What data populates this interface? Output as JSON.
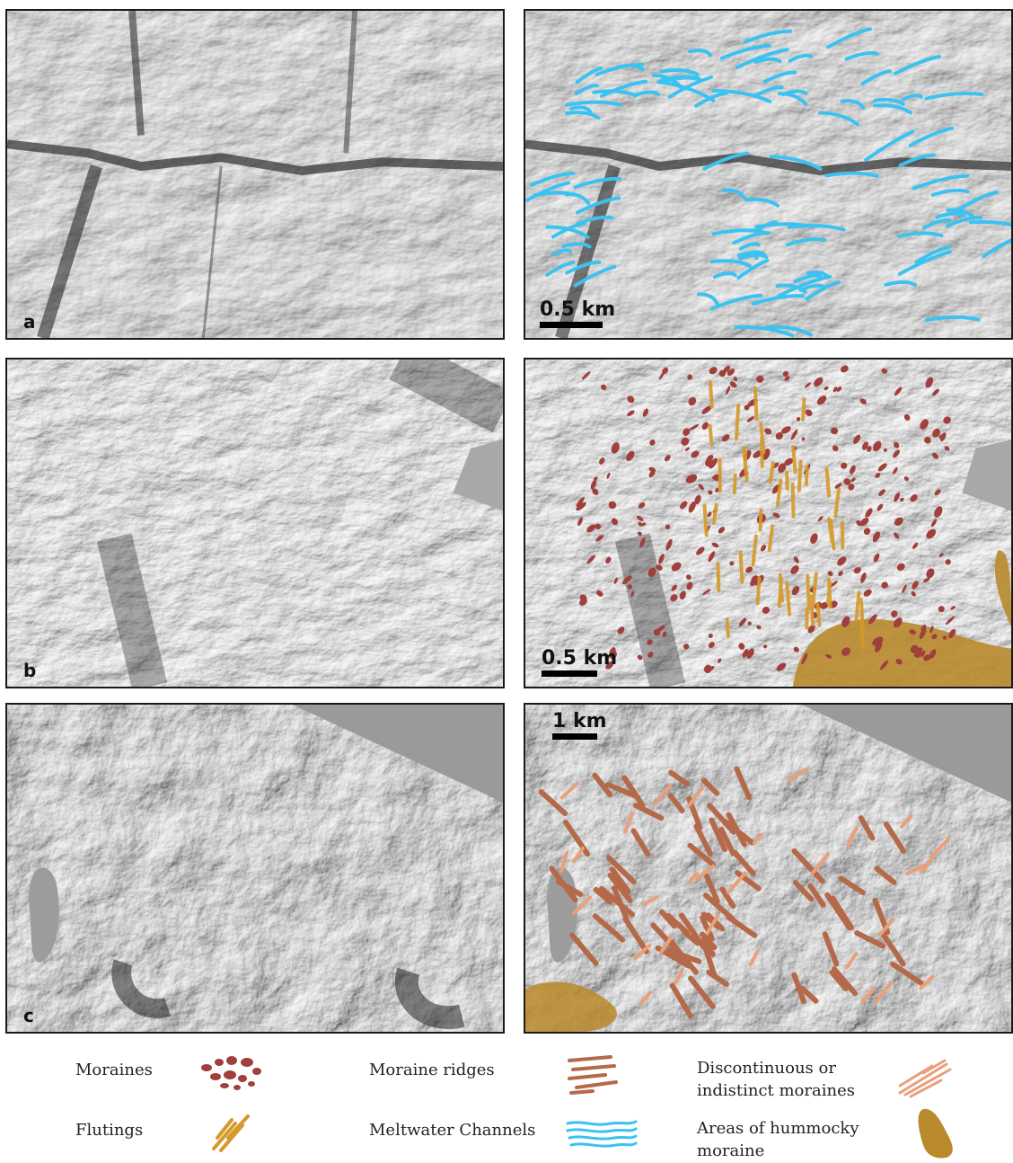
{
  "panels": [
    {
      "label": "a",
      "scale": "0.5 km"
    },
    {
      "label": "b",
      "scale": "0.5 km"
    },
    {
      "label": "c",
      "scale": "1 km"
    }
  ],
  "legend": {
    "moraines": "Moraines",
    "flutings": "Flutings",
    "moraine_ridges": "Moraine ridges",
    "meltwater_channels": "Meltwater Channels",
    "discontinuous_line1": "Discontinuous or",
    "discontinuous_line2": "indistinct moraines",
    "hummocky_line1": "Areas of hummocky",
    "hummocky_line2": "moraine"
  },
  "colors": {
    "moraines": "#a0403c",
    "flutings": "#d49a2a",
    "moraine_ridges": "#b46a4a",
    "meltwater_channels": "#3cc2f0",
    "discontinuous": "#e9a07a",
    "hummocky": "#b88a2c"
  }
}
